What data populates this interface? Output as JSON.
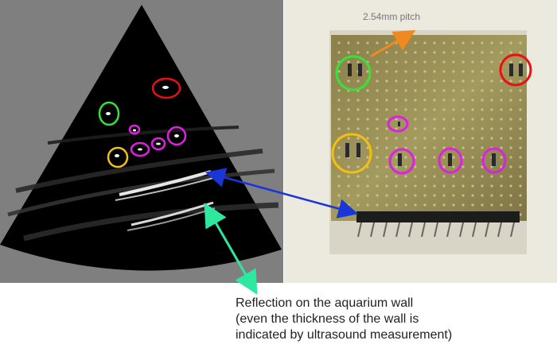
{
  "pitch_label": "2.54mm pitch",
  "caption_lines": [
    "Reflection on the aquarium wall",
    "(even the thickness of the wall is",
    "indicated by ultrasound measurement)"
  ],
  "colors": {
    "ultrasound_panel_bg": "#7f7f7f",
    "scan_sector": "#000000",
    "board_bg": "#ece9de",
    "green_marker": "#39e039",
    "red_marker": "#e81010",
    "yellow_marker": "#f2c010",
    "magenta_marker": "#e020e0",
    "blue_arrow": "#1a36d8",
    "teal_arrow": "#2ee8a0",
    "orange_arrow": "#f08a20"
  }
}
